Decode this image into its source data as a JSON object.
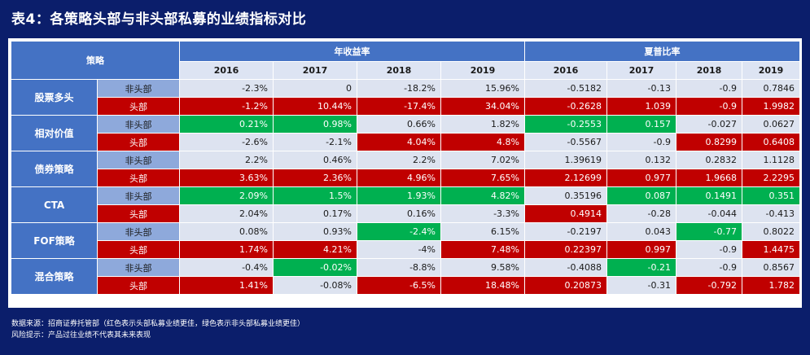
{
  "title": "表4：各策略头部与非头部私募的业绩指标对比",
  "header": {
    "strategy": "策略",
    "group_return": "年收益率",
    "group_sharpe": "夏普比率",
    "years": [
      "2016",
      "2017",
      "2018",
      "2019",
      "2016",
      "2017",
      "2018",
      "2019"
    ]
  },
  "colors": {
    "red": "#c00000",
    "green": "#00b050",
    "blue": "#4472c4",
    "neutral": "#dde3f0"
  },
  "rows": [
    {
      "strategy": "股票多头",
      "non": {
        "label": "非头部",
        "cells": [
          [
            "-2.3%",
            "n"
          ],
          [
            "0",
            "n"
          ],
          [
            "-18.2%",
            "n"
          ],
          [
            "15.96%",
            "n"
          ],
          [
            "-0.5182",
            "n"
          ],
          [
            "-0.13",
            "n"
          ],
          [
            "-0.9",
            "n"
          ],
          [
            "0.7846",
            "n"
          ]
        ]
      },
      "head": {
        "label": "头部",
        "cells": [
          [
            "-1.2%",
            "r"
          ],
          [
            "10.44%",
            "r"
          ],
          [
            "-17.4%",
            "r"
          ],
          [
            "34.04%",
            "r"
          ],
          [
            "-0.2628",
            "r"
          ],
          [
            "1.039",
            "r"
          ],
          [
            "-0.9",
            "r"
          ],
          [
            "1.9982",
            "r"
          ]
        ]
      }
    },
    {
      "strategy": "相对价值",
      "non": {
        "label": "非头部",
        "cells": [
          [
            "0.21%",
            "g"
          ],
          [
            "0.98%",
            "g"
          ],
          [
            "0.66%",
            "n"
          ],
          [
            "1.82%",
            "n"
          ],
          [
            "-0.2553",
            "g"
          ],
          [
            "0.157",
            "g"
          ],
          [
            "-0.027",
            "n"
          ],
          [
            "0.0627",
            "n"
          ]
        ]
      },
      "head": {
        "label": "头部",
        "cells": [
          [
            "-2.6%",
            "n"
          ],
          [
            "-2.1%",
            "n"
          ],
          [
            "4.04%",
            "r"
          ],
          [
            "4.8%",
            "r"
          ],
          [
            "-0.5567",
            "n"
          ],
          [
            "-0.9",
            "n"
          ],
          [
            "0.8299",
            "r"
          ],
          [
            "0.6408",
            "r"
          ]
        ]
      }
    },
    {
      "strategy": "债券策略",
      "non": {
        "label": "非头部",
        "cells": [
          [
            "2.2%",
            "n"
          ],
          [
            "0.46%",
            "n"
          ],
          [
            "2.2%",
            "n"
          ],
          [
            "7.02%",
            "n"
          ],
          [
            "1.39619",
            "n"
          ],
          [
            "0.132",
            "n"
          ],
          [
            "0.2832",
            "n"
          ],
          [
            "1.1128",
            "n"
          ]
        ]
      },
      "head": {
        "label": "头部",
        "cells": [
          [
            "3.63%",
            "r"
          ],
          [
            "2.36%",
            "r"
          ],
          [
            "4.96%",
            "r"
          ],
          [
            "7.65%",
            "r"
          ],
          [
            "2.12699",
            "r"
          ],
          [
            "0.977",
            "r"
          ],
          [
            "1.9668",
            "r"
          ],
          [
            "2.2295",
            "r"
          ]
        ]
      }
    },
    {
      "strategy": "CTA",
      "non": {
        "label": "非头部",
        "cells": [
          [
            "2.09%",
            "g"
          ],
          [
            "1.5%",
            "g"
          ],
          [
            "1.93%",
            "g"
          ],
          [
            "4.82%",
            "g"
          ],
          [
            "0.35196",
            "n"
          ],
          [
            "0.087",
            "g"
          ],
          [
            "0.1491",
            "g"
          ],
          [
            "0.351",
            "g"
          ]
        ]
      },
      "head": {
        "label": "头部",
        "cells": [
          [
            "2.04%",
            "n"
          ],
          [
            "0.17%",
            "n"
          ],
          [
            "0.16%",
            "n"
          ],
          [
            "-3.3%",
            "n"
          ],
          [
            "0.4914",
            "r"
          ],
          [
            "-0.28",
            "n"
          ],
          [
            "-0.044",
            "n"
          ],
          [
            "-0.413",
            "n"
          ]
        ]
      }
    },
    {
      "strategy": "FOF策略",
      "non": {
        "label": "非头部",
        "cells": [
          [
            "0.08%",
            "n"
          ],
          [
            "0.93%",
            "n"
          ],
          [
            "-2.4%",
            "g"
          ],
          [
            "6.15%",
            "n"
          ],
          [
            "-0.2197",
            "n"
          ],
          [
            "0.043",
            "n"
          ],
          [
            "-0.77",
            "g"
          ],
          [
            "0.8022",
            "n"
          ]
        ]
      },
      "head": {
        "label": "头部",
        "cells": [
          [
            "1.74%",
            "r"
          ],
          [
            "4.21%",
            "r"
          ],
          [
            "-4%",
            "n"
          ],
          [
            "7.48%",
            "r"
          ],
          [
            "0.22397",
            "r"
          ],
          [
            "0.997",
            "r"
          ],
          [
            "-0.9",
            "n"
          ],
          [
            "1.4475",
            "r"
          ]
        ]
      }
    },
    {
      "strategy": "混合策略",
      "non": {
        "label": "非头部",
        "cells": [
          [
            "-0.4%",
            "n"
          ],
          [
            "-0.02%",
            "g"
          ],
          [
            "-8.8%",
            "n"
          ],
          [
            "9.58%",
            "n"
          ],
          [
            "-0.4088",
            "n"
          ],
          [
            "-0.21",
            "g"
          ],
          [
            "-0.9",
            "n"
          ],
          [
            "0.8567",
            "n"
          ]
        ]
      },
      "head": {
        "label": "头部",
        "cells": [
          [
            "1.41%",
            "r"
          ],
          [
            "-0.08%",
            "n"
          ],
          [
            "-6.5%",
            "r"
          ],
          [
            "18.48%",
            "r"
          ],
          [
            "0.20873",
            "r"
          ],
          [
            "-0.31",
            "n"
          ],
          [
            "-0.792",
            "r"
          ],
          [
            "1.782",
            "r"
          ]
        ]
      }
    }
  ],
  "footer": {
    "source": "数据来源：招商证券托管部（红色表示头部私募业绩更佳，绿色表示非头部私募业绩更佳）",
    "risk": "风险提示：产品过往业绩不代表其未来表现"
  }
}
